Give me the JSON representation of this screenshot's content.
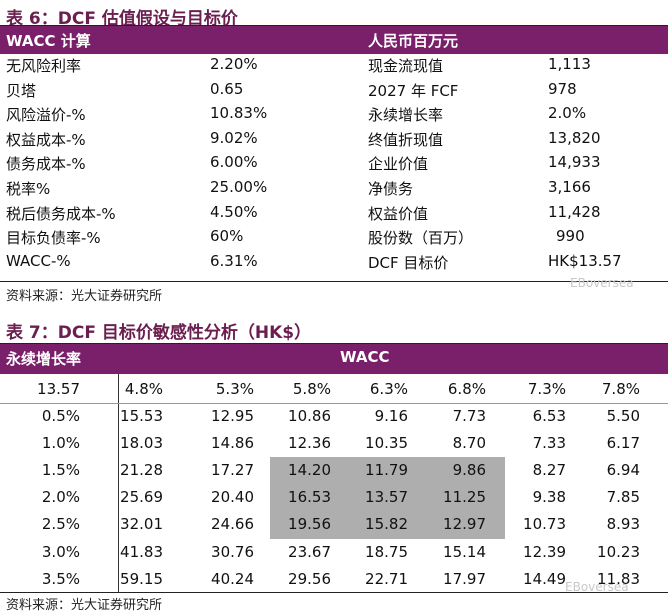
{
  "table6": {
    "title": "表 6：DCF 估值假设与目标价",
    "header_left": "WACC 计算",
    "header_right": "人民币百万元",
    "left_rows": [
      {
        "label": "无风险利率",
        "value": "2.20%"
      },
      {
        "label": "贝塔",
        "value": "0.65"
      },
      {
        "label": "风险溢价-%",
        "value": "10.83%"
      },
      {
        "label": "权益成本-%",
        "value": "9.02%"
      },
      {
        "label": "债务成本-%",
        "value": "6.00%"
      },
      {
        "label": "税率%",
        "value": "25.00%"
      },
      {
        "label": "税后债务成本-%",
        "value": "4.50%"
      },
      {
        "label": "目标负债率-%",
        "value": "60%"
      },
      {
        "label": "WACC-%",
        "value": "6.31%"
      }
    ],
    "right_rows": [
      {
        "label": "现金流现值",
        "value": "1,113"
      },
      {
        "label": "2027 年 FCF",
        "value": "978"
      },
      {
        "label": "永续增长率",
        "value": "2.0%"
      },
      {
        "label": "终值折现值",
        "value": "13,820"
      },
      {
        "label": "企业价值",
        "value": "14,933"
      },
      {
        "label": "净债务",
        "value": "3,166"
      },
      {
        "label": "权益价值",
        "value": "11,428"
      },
      {
        "label": "股份数（百万）",
        "value": "990"
      },
      {
        "label": "DCF 目标价",
        "value": "HK$13.57"
      }
    ],
    "source": "资料来源：光大证券研究所",
    "watermark": "EBoversea"
  },
  "table7": {
    "title": "表 7：DCF 目标价敏感性分析（HK$）",
    "header_left": "永续增长率",
    "header_right": "WACC",
    "corner_value": "13.57",
    "wacc_values": [
      "4.8%",
      "5.3%",
      "5.8%",
      "6.3%",
      "6.8%",
      "7.3%",
      "7.8%"
    ],
    "rows": [
      {
        "growth": "0.5%",
        "values": [
          "15.53",
          "12.95",
          "10.86",
          "9.16",
          "7.73",
          "6.53",
          "5.50"
        ]
      },
      {
        "growth": "1.0%",
        "values": [
          "18.03",
          "14.86",
          "12.36",
          "10.35",
          "8.70",
          "7.33",
          "6.17"
        ]
      },
      {
        "growth": "1.5%",
        "values": [
          "21.28",
          "17.27",
          "14.20",
          "11.79",
          "9.86",
          "8.27",
          "6.94"
        ]
      },
      {
        "growth": "2.0%",
        "values": [
          "25.69",
          "20.40",
          "16.53",
          "13.57",
          "11.25",
          "9.38",
          "7.85"
        ]
      },
      {
        "growth": "2.5%",
        "values": [
          "32.01",
          "24.66",
          "19.56",
          "15.82",
          "12.97",
          "10.73",
          "8.93"
        ]
      },
      {
        "growth": "3.0%",
        "values": [
          "41.83",
          "30.76",
          "23.67",
          "18.75",
          "15.14",
          "12.39",
          "10.23"
        ]
      },
      {
        "growth": "3.5%",
        "values": [
          "59.15",
          "40.24",
          "29.56",
          "22.71",
          "17.97",
          "14.49",
          "11.83"
        ]
      }
    ],
    "highlight_color": "#aeaeae",
    "source": "资料来源：光大证券研究所",
    "watermark": "EBoversea"
  },
  "colors": {
    "header_bg": "#7a1f6a",
    "title": "#6b1f4f"
  }
}
